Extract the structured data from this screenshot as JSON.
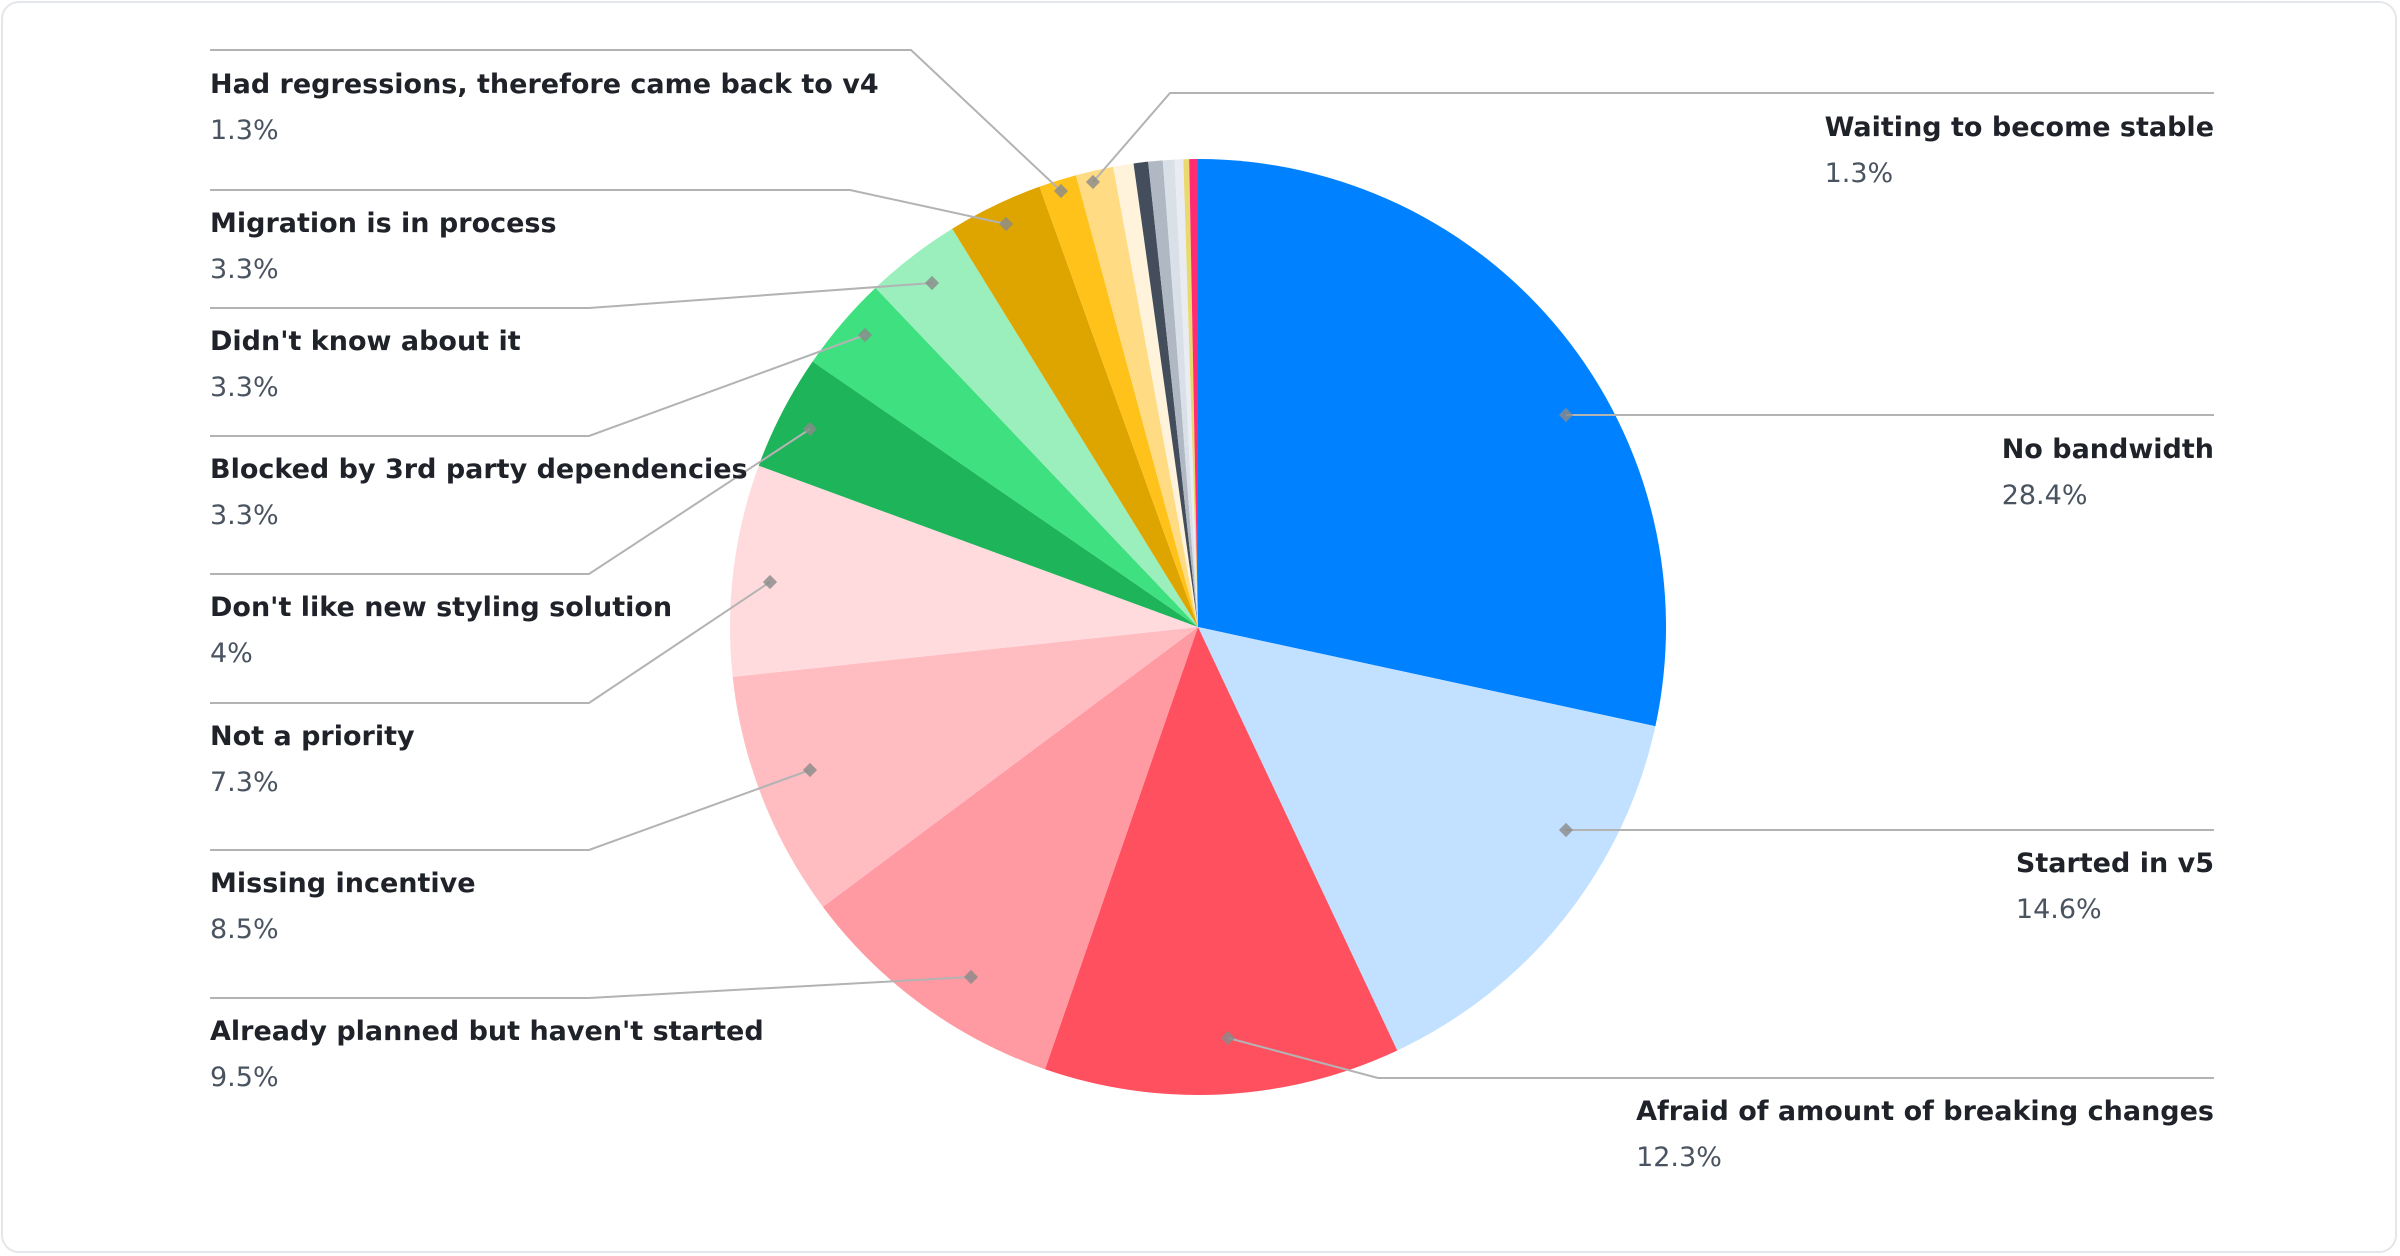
{
  "chart_data": {
    "type": "pie",
    "start": "top",
    "direction": "clockwise",
    "slices": [
      {
        "label": "No bandwidth",
        "value": 28.4,
        "display": "28.4%",
        "color": "#0081ff"
      },
      {
        "label": "Started in v5",
        "value": 14.6,
        "display": "14.6%",
        "color": "#c2e0ff"
      },
      {
        "label": "Afraid of amount of breaking changes",
        "value": 12.3,
        "display": "12.3%",
        "color": "#ff505f"
      },
      {
        "label": "Already planned but haven't started",
        "value": 9.5,
        "display": "9.5%",
        "color": "#ff99a2"
      },
      {
        "label": "Missing incentive",
        "value": 8.5,
        "display": "8.5%",
        "color": "#ffbdc2"
      },
      {
        "label": "Not a priority",
        "value": 7.3,
        "display": "7.3%",
        "color": "#ffdbde"
      },
      {
        "label": "Don't like new styling solution",
        "value": 4,
        "display": "4%",
        "color": "#1db45a"
      },
      {
        "label": "Blocked by 3rd party dependencies",
        "value": 3.3,
        "display": "3.3%",
        "color": "#3ee07f"
      },
      {
        "label": "Didn't know about it",
        "value": 3.3,
        "display": "3.3%",
        "color": "#9aefbc"
      },
      {
        "label": "Migration is in process",
        "value": 3.3,
        "display": "3.3%",
        "color": "#dea500"
      },
      {
        "label": "Had regressions, therefore came back to v4",
        "value": 1.3,
        "display": "1.3%",
        "color": "#ffc21a"
      },
      {
        "label": "Waiting to become stable",
        "value": 1.3,
        "display": "1.3%",
        "color": "#ffdc84"
      },
      {
        "value": 0.7,
        "color": "#fff3dc"
      },
      {
        "value": 0.5,
        "color": "#434d5b"
      },
      {
        "value": 0.5,
        "color": "#b0b8c4"
      },
      {
        "value": 0.4,
        "color": "#dae0e7"
      },
      {
        "value": 0.3,
        "color": "#e9edf3"
      },
      {
        "value": 0.2,
        "color": "#e9d96e"
      },
      {
        "value": 0.3,
        "color": "#ff2c73"
      }
    ]
  }
}
